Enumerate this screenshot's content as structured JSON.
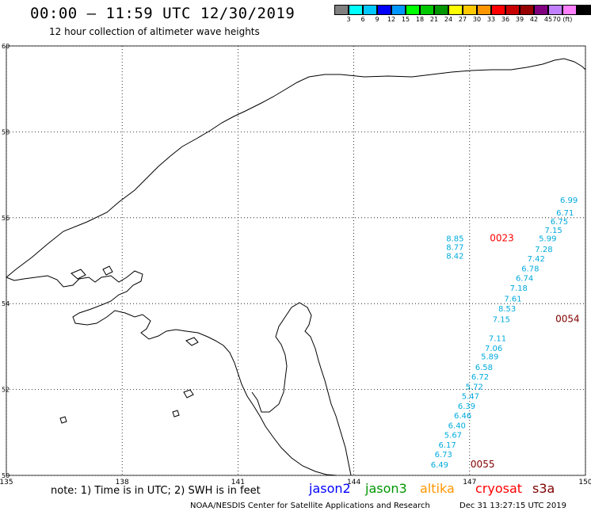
{
  "header": {
    "title": "00:00 – 11:59 UTC 12/30/2019",
    "subtitle": "12 hour collection of altimeter wave heights"
  },
  "color_scale": {
    "colors": [
      "#808080",
      "#00ffff",
      "#00c8ff",
      "#0000ff",
      "#0096ff",
      "#00ff00",
      "#00c800",
      "#009600",
      "#ffff00",
      "#ffc800",
      "#ff9600",
      "#ff0000",
      "#c80000",
      "#960000",
      "#800080",
      "#c080ff",
      "#ff80ff",
      "#000000"
    ],
    "labels": [
      "3",
      "6",
      "9",
      "12",
      "15",
      "18",
      "21",
      "24",
      "27",
      "30",
      "33",
      "36",
      "39",
      "42",
      "45",
      "70 (ft)"
    ]
  },
  "map": {
    "lon_ticks": [
      "135",
      "138",
      "141",
      "144",
      "147",
      "150"
    ],
    "lat_ticks": [
      "50",
      "52",
      "54",
      "56",
      "58",
      "60"
    ],
    "wave_labels": [
      {
        "text": "8.85",
        "lon": 146.85,
        "lat": 55.45,
        "color": "#00aadd"
      },
      {
        "text": "8.77",
        "lon": 146.85,
        "lat": 55.25,
        "color": "#00aadd"
      },
      {
        "text": "8.42",
        "lon": 146.85,
        "lat": 55.05,
        "color": "#00aadd"
      },
      {
        "text": "6.99",
        "lon": 149.8,
        "lat": 56.35,
        "color": "#00aadd"
      },
      {
        "text": "6.71",
        "lon": 149.7,
        "lat": 56.05,
        "color": "#00aadd"
      },
      {
        "text": "6.75",
        "lon": 149.55,
        "lat": 55.85,
        "color": "#00aadd"
      },
      {
        "text": "7.15",
        "lon": 149.4,
        "lat": 55.65,
        "color": "#00aadd"
      },
      {
        "text": "5.99",
        "lon": 149.25,
        "lat": 55.45,
        "color": "#00aadd"
      },
      {
        "text": "7.28",
        "lon": 149.15,
        "lat": 55.2,
        "color": "#00aadd"
      },
      {
        "text": "7.42",
        "lon": 148.95,
        "lat": 54.98,
        "color": "#00aadd"
      },
      {
        "text": "6.78",
        "lon": 148.8,
        "lat": 54.75,
        "color": "#00aadd"
      },
      {
        "text": "6.74",
        "lon": 148.65,
        "lat": 54.53,
        "color": "#00aadd"
      },
      {
        "text": "7.18",
        "lon": 148.5,
        "lat": 54.3,
        "color": "#00aadd"
      },
      {
        "text": "7.61",
        "lon": 148.35,
        "lat": 54.05,
        "color": "#00aadd"
      },
      {
        "text": "8.53",
        "lon": 148.2,
        "lat": 53.82,
        "color": "#00aadd"
      },
      {
        "text": "7.15",
        "lon": 148.05,
        "lat": 53.57,
        "color": "#00aadd"
      },
      {
        "text": "7.11",
        "lon": 147.95,
        "lat": 53.13,
        "color": "#00aadd"
      },
      {
        "text": "7.06",
        "lon": 147.85,
        "lat": 52.9,
        "color": "#00aadd"
      },
      {
        "text": "5.89",
        "lon": 147.75,
        "lat": 52.7,
        "color": "#00aadd"
      },
      {
        "text": "6.58",
        "lon": 147.6,
        "lat": 52.45,
        "color": "#00aadd"
      },
      {
        "text": "6.72",
        "lon": 147.5,
        "lat": 52.23,
        "color": "#00aadd"
      },
      {
        "text": "5.72",
        "lon": 147.35,
        "lat": 52.0,
        "color": "#00aadd"
      },
      {
        "text": "5.47",
        "lon": 147.25,
        "lat": 51.78,
        "color": "#00aadd"
      },
      {
        "text": "6.39",
        "lon": 147.15,
        "lat": 51.55,
        "color": "#00aadd"
      },
      {
        "text": "6.46",
        "lon": 147.05,
        "lat": 51.33,
        "color": "#00aadd"
      },
      {
        "text": "6.40",
        "lon": 146.9,
        "lat": 51.1,
        "color": "#00aadd"
      },
      {
        "text": "5.67",
        "lon": 146.8,
        "lat": 50.88,
        "color": "#00aadd"
      },
      {
        "text": "6.17",
        "lon": 146.65,
        "lat": 50.65,
        "color": "#00aadd"
      },
      {
        "text": "6.73",
        "lon": 146.55,
        "lat": 50.42,
        "color": "#00aadd"
      },
      {
        "text": "6.49",
        "lon": 146.45,
        "lat": 50.18,
        "color": "#00aadd"
      }
    ],
    "time_labels": [
      {
        "text": "0023",
        "lon": 148.15,
        "lat": 55.45,
        "color": "#ff0000"
      },
      {
        "text": "0054",
        "lon": 149.85,
        "lat": 53.57,
        "color": "#800000"
      },
      {
        "text": "0055",
        "lon": 147.65,
        "lat": 50.18,
        "color": "#800000"
      }
    ]
  },
  "footer": {
    "note": "note:  1) Time is in UTC; 2) SWH is in feet",
    "satellites": [
      {
        "name": "jason2",
        "color": "#0000ff"
      },
      {
        "name": "jason3",
        "color": "#009600"
      },
      {
        "name": "altika",
        "color": "#ff9600"
      },
      {
        "name": "cryosat",
        "color": "#ff0000"
      },
      {
        "name": "s3a",
        "color": "#800000"
      }
    ],
    "credit": "NOAA/NESDIS Center for Satellite Applications and Research",
    "timestamp": "Dec 31 13:27:15 UTC 2019"
  }
}
